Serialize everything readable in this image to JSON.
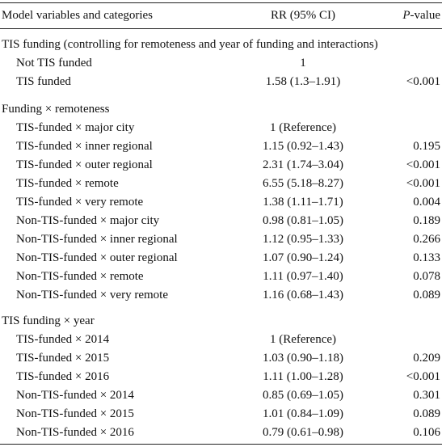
{
  "header": {
    "col_variables": "Model variables and categories",
    "col_rr": "RR (95% CI)",
    "col_p_italic": "P",
    "col_p_rest": "-value"
  },
  "sections": [
    {
      "title": "TIS funding (controlling for remoteness and year of funding and interactions)",
      "rows": [
        {
          "label": "Not TIS funded",
          "rr": "1",
          "p": ""
        },
        {
          "label": "TIS funded",
          "rr": "1.58 (1.3–1.91)",
          "p": "<0.001"
        }
      ]
    },
    {
      "title": "Funding × remoteness",
      "rows": [
        {
          "label": "TIS-funded × major city",
          "rr": "1 (Reference)",
          "p": ""
        },
        {
          "label": "TIS-funded × inner regional",
          "rr": "1.15 (0.92–1.43)",
          "p": "0.195"
        },
        {
          "label": "TIS-funded × outer regional",
          "rr": "2.31 (1.74–3.04)",
          "p": "<0.001"
        },
        {
          "label": "TIS-funded × remote",
          "rr": "6.55 (5.18–8.27)",
          "p": "<0.001"
        },
        {
          "label": "TIS-funded × very remote",
          "rr": "1.38 (1.11–1.71)",
          "p": "0.004"
        },
        {
          "label": "Non-TIS-funded × major city",
          "rr": "0.98 (0.81–1.05)",
          "p": "0.189"
        },
        {
          "label": "Non-TIS-funded × inner regional",
          "rr": "1.12 (0.95–1.33)",
          "p": "0.266"
        },
        {
          "label": "Non-TIS-funded × outer regional",
          "rr": "1.07 (0.90–1.24)",
          "p": "0.133"
        },
        {
          "label": "Non-TIS-funded × remote",
          "rr": "1.11 (0.97–1.40)",
          "p": "0.078"
        },
        {
          "label": "Non-TIS-funded × very remote",
          "rr": "1.16 (0.68–1.43)",
          "p": "0.089"
        }
      ]
    },
    {
      "title": "TIS funding × year",
      "rows": [
        {
          "label": "TIS-funded × 2014",
          "rr": "1 (Reference)",
          "p": ""
        },
        {
          "label": "TIS-funded × 2015",
          "rr": "1.03 (0.90–1.18)",
          "p": "0.209"
        },
        {
          "label": "TIS-funded × 2016",
          "rr": "1.11 (1.00–1.28)",
          "p": "<0.001"
        },
        {
          "label": "Non-TIS-funded × 2014",
          "rr": "0.85 (0.69–1.05)",
          "p": "0.301"
        },
        {
          "label": "Non-TIS-funded × 2015",
          "rr": "1.01 (0.84–1.09)",
          "p": "0.089"
        },
        {
          "label": "Non-TIS-funded × 2016",
          "rr": "0.79 (0.61–0.98)",
          "p": "0.106"
        }
      ]
    }
  ]
}
